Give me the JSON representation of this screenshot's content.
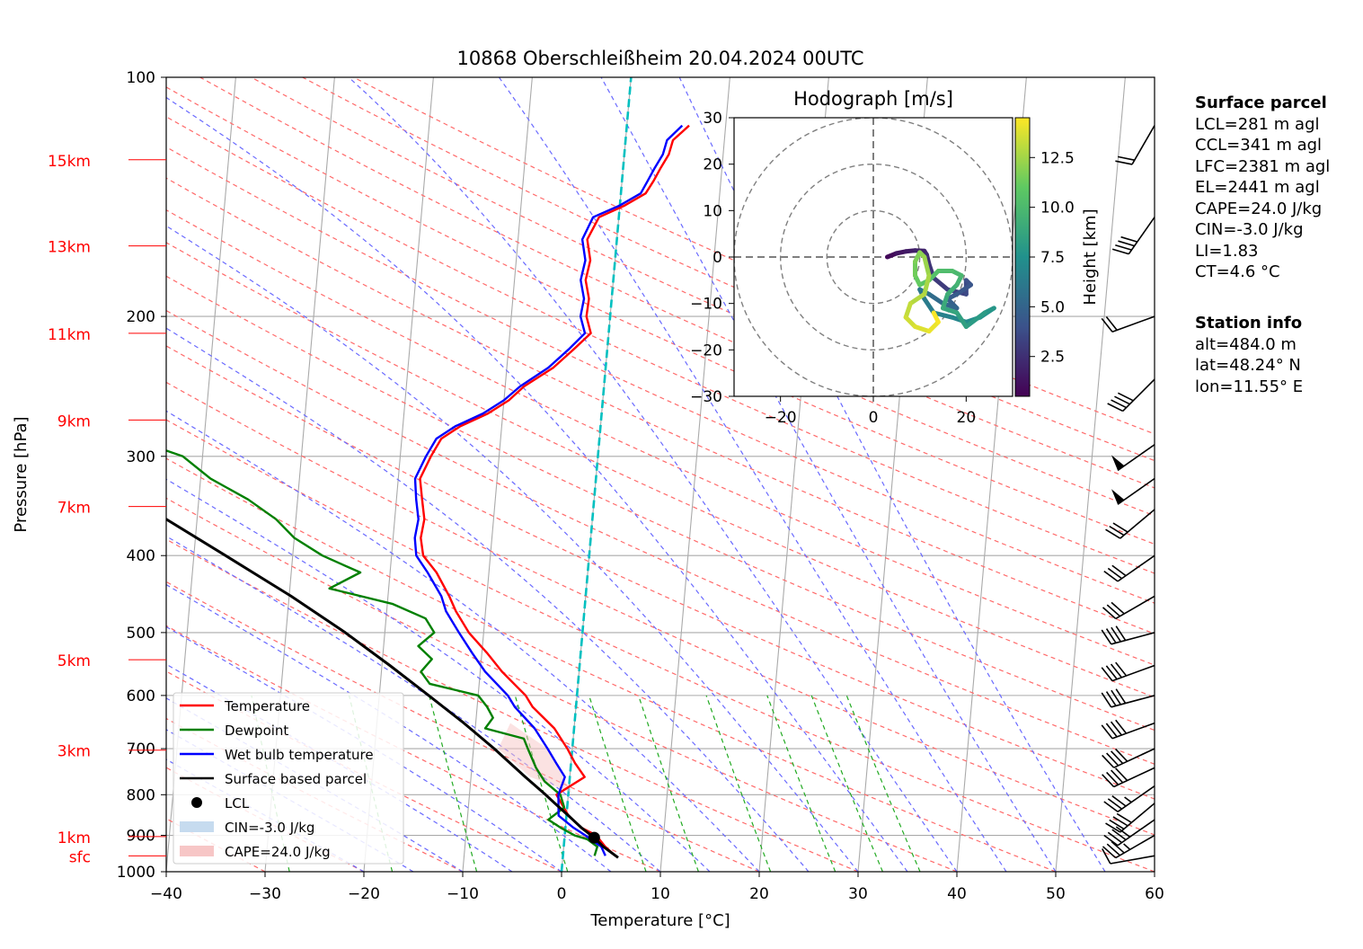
{
  "chart_data": {
    "type": "skew-t",
    "title": "10868 Oberschleißheim 20.04.2024 00UTC",
    "xlabel": "Temperature [°C]",
    "ylabel": "Pressure [hPa]",
    "xlim": [
      -40,
      60
    ],
    "ylim": [
      1000,
      100
    ],
    "x_ticks": [
      "−40",
      "−30",
      "−20",
      "−10",
      "0",
      "10",
      "20",
      "30",
      "40",
      "50",
      "60"
    ],
    "pressure_ticks": [
      {
        "p": 100,
        "label": "100"
      },
      {
        "p": 200,
        "label": "200"
      },
      {
        "p": 300,
        "label": "300"
      },
      {
        "p": 400,
        "label": "400"
      },
      {
        "p": 500,
        "label": "500"
      },
      {
        "p": 600,
        "label": "600"
      },
      {
        "p": 700,
        "label": "700"
      },
      {
        "p": 800,
        "label": "800"
      },
      {
        "p": 900,
        "label": "900"
      },
      {
        "p": 1000,
        "label": "1000"
      }
    ],
    "height_markers": [
      {
        "label": "15km",
        "p": 127
      },
      {
        "label": "13km",
        "p": 163
      },
      {
        "label": "11km",
        "p": 210
      },
      {
        "label": "9km",
        "p": 270
      },
      {
        "label": "7km",
        "p": 347
      },
      {
        "label": "5km",
        "p": 541
      },
      {
        "label": "3km",
        "p": 703
      },
      {
        "label": "1km",
        "p": 903
      },
      {
        "label": "sfc",
        "p": 955
      }
    ],
    "grid": true,
    "colors": {
      "temperature": "#ff0000",
      "dewpoint": "#008000",
      "wetbulb": "#0000ff",
      "parcel": "#000000",
      "dry_adiabat": "#ff6a6a",
      "moist_adiabat": "#6a6aff",
      "mixing_ratio": "#22aa22",
      "isotherm": "#aaaaaa",
      "zero_isotherm": "#00c0c0",
      "height_marker": "#ff0000"
    },
    "legend": {
      "position": "lower-left",
      "entries": [
        {
          "label": "Temperature",
          "kind": "line",
          "color": "#ff0000"
        },
        {
          "label": "Dewpoint",
          "kind": "line",
          "color": "#008000"
        },
        {
          "label": "Wet bulb temperature",
          "kind": "line",
          "color": "#0000ff"
        },
        {
          "label": "Surface based parcel",
          "kind": "line",
          "color": "#000000"
        },
        {
          "label": "LCL",
          "kind": "dot",
          "color": "#000000"
        },
        {
          "label": "CIN=-3.0 J/kg",
          "kind": "patch",
          "color": "#c6dbef"
        },
        {
          "label": "CAPE=24.0 J/kg",
          "kind": "patch",
          "color": "#f7c6c6"
        }
      ]
    },
    "series": [
      {
        "name": "Temperature",
        "points": [
          [
            955,
            5.3
          ],
          [
            930,
            4.2
          ],
          [
            900,
            3.2
          ],
          [
            880,
            1.6
          ],
          [
            850,
            0.2
          ],
          [
            800,
            -1.2
          ],
          [
            760,
            1.5
          ],
          [
            730,
            0.4
          ],
          [
            700,
            -0.5
          ],
          [
            660,
            -2.0
          ],
          [
            620,
            -4.4
          ],
          [
            600,
            -5.2
          ],
          [
            560,
            -7.8
          ],
          [
            530,
            -9.5
          ],
          [
            500,
            -11.5
          ],
          [
            470,
            -13.0
          ],
          [
            450,
            -13.8
          ],
          [
            420,
            -15.3
          ],
          [
            400,
            -16.8
          ],
          [
            380,
            -17.2
          ],
          [
            360,
            -17.0
          ],
          [
            340,
            -17.4
          ],
          [
            320,
            -17.8
          ],
          [
            300,
            -16.9
          ],
          [
            285,
            -16.0
          ],
          [
            275,
            -14.2
          ],
          [
            265,
            -11.5
          ],
          [
            255,
            -9.5
          ],
          [
            245,
            -8.1
          ],
          [
            232,
            -5.3
          ],
          [
            220,
            -3.4
          ],
          [
            210,
            -1.8
          ],
          [
            200,
            -2.4
          ],
          [
            190,
            -2.3
          ],
          [
            180,
            -2.8
          ],
          [
            170,
            -2.5
          ],
          [
            160,
            -3.0
          ],
          [
            150,
            -2.0
          ],
          [
            145,
            0.5
          ],
          [
            140,
            2.5
          ],
          [
            135,
            3.2
          ],
          [
            130,
            3.8
          ],
          [
            125,
            4.5
          ],
          [
            120,
            4.8
          ],
          [
            115,
            6.3
          ]
        ]
      },
      {
        "name": "Dewpoint",
        "points": [
          [
            955,
            3.2
          ],
          [
            930,
            3.4
          ],
          [
            910,
            2.3
          ],
          [
            900,
            1.0
          ],
          [
            880,
            -0.5
          ],
          [
            860,
            -1.8
          ],
          [
            830,
            -0.3
          ],
          [
            800,
            -0.8
          ],
          [
            770,
            -2.5
          ],
          [
            740,
            -3.5
          ],
          [
            700,
            -4.5
          ],
          [
            680,
            -5.0
          ],
          [
            660,
            -9.0
          ],
          [
            640,
            -8.3
          ],
          [
            620,
            -9.0
          ],
          [
            600,
            -10.0
          ],
          [
            580,
            -15.0
          ],
          [
            560,
            -16.0
          ],
          [
            540,
            -15.0
          ],
          [
            520,
            -16.5
          ],
          [
            500,
            -15.0
          ],
          [
            480,
            -16.0
          ],
          [
            460,
            -19.5
          ],
          [
            440,
            -26.0
          ],
          [
            420,
            -23.0
          ],
          [
            410,
            -25.0
          ],
          [
            400,
            -27.0
          ],
          [
            380,
            -30.0
          ],
          [
            360,
            -32.0
          ],
          [
            340,
            -35.0
          ],
          [
            320,
            -39.0
          ],
          [
            300,
            -42.0
          ],
          [
            290,
            -45.5
          ],
          [
            280,
            -47.0
          ],
          [
            270,
            -48.5
          ],
          [
            260,
            -49.0
          ],
          [
            250,
            -51.0
          ],
          [
            240,
            -52.5
          ],
          [
            230,
            -53.5
          ],
          [
            220,
            -55.0
          ],
          [
            200,
            -57.0
          ],
          [
            180,
            -59.0
          ],
          [
            160,
            -61.5
          ],
          [
            150,
            -62.5
          ],
          [
            140,
            -64.0
          ],
          [
            130,
            -66.5
          ],
          [
            123,
            -68.0
          ]
        ]
      },
      {
        "name": "Wet bulb temperature",
        "points": [
          [
            955,
            4.3
          ],
          [
            930,
            3.8
          ],
          [
            900,
            2.1
          ],
          [
            880,
            0.8
          ],
          [
            850,
            -0.8
          ],
          [
            800,
            -1.0
          ],
          [
            760,
            -0.5
          ],
          [
            730,
            -1.5
          ],
          [
            700,
            -2.5
          ],
          [
            660,
            -4.0
          ],
          [
            620,
            -6.2
          ],
          [
            600,
            -7.0
          ],
          [
            560,
            -9.5
          ],
          [
            530,
            -11.0
          ],
          [
            500,
            -12.5
          ],
          [
            470,
            -14.0
          ],
          [
            450,
            -14.6
          ],
          [
            420,
            -16.2
          ],
          [
            400,
            -17.5
          ],
          [
            380,
            -17.8
          ],
          [
            360,
            -17.6
          ],
          [
            340,
            -18.0
          ],
          [
            320,
            -18.3
          ],
          [
            300,
            -17.4
          ],
          [
            285,
            -16.5
          ],
          [
            275,
            -14.7
          ],
          [
            265,
            -12.0
          ],
          [
            255,
            -10.0
          ],
          [
            245,
            -8.5
          ],
          [
            232,
            -5.8
          ],
          [
            220,
            -3.9
          ],
          [
            210,
            -2.4
          ],
          [
            200,
            -3.0
          ],
          [
            190,
            -2.8
          ],
          [
            180,
            -3.3
          ],
          [
            170,
            -3.0
          ],
          [
            160,
            -3.5
          ],
          [
            150,
            -2.6
          ],
          [
            145,
            0.0
          ],
          [
            140,
            2.0
          ],
          [
            135,
            2.6
          ],
          [
            130,
            3.2
          ],
          [
            125,
            3.9
          ],
          [
            120,
            4.2
          ],
          [
            115,
            5.6
          ]
        ]
      },
      {
        "name": "Surface based parcel",
        "points": [
          [
            960,
            5.6
          ],
          [
            930,
            4.0
          ],
          [
            906,
            3.0
          ],
          [
            880,
            1.6
          ],
          [
            850,
            0.2
          ],
          [
            820,
            -1.3
          ],
          [
            800,
            -2.3
          ],
          [
            760,
            -4.5
          ],
          [
            700,
            -7.9
          ],
          [
            650,
            -11.2
          ],
          [
            600,
            -15.0
          ],
          [
            550,
            -19.2
          ],
          [
            500,
            -24.0
          ],
          [
            450,
            -29.8
          ],
          [
            400,
            -36.8
          ],
          [
            350,
            -44.8
          ],
          [
            300,
            -53.7
          ],
          [
            250,
            -64.0
          ],
          [
            200,
            -76.0
          ]
        ]
      }
    ],
    "lcl": {
      "p": 906,
      "t": 3.0
    },
    "zero_isotherm": {
      "t": 0
    },
    "wind_barbs": [
      {
        "p": 955,
        "speed_kt": 10,
        "dir_deg": 260
      },
      {
        "p": 900,
        "speed_kt": 35,
        "dir_deg": 240
      },
      {
        "p": 860,
        "speed_kt": 40,
        "dir_deg": 235
      },
      {
        "p": 820,
        "speed_kt": 40,
        "dir_deg": 230
      },
      {
        "p": 780,
        "speed_kt": 35,
        "dir_deg": 235
      },
      {
        "p": 740,
        "speed_kt": 40,
        "dir_deg": 245
      },
      {
        "p": 700,
        "speed_kt": 40,
        "dir_deg": 245
      },
      {
        "p": 650,
        "speed_kt": 40,
        "dir_deg": 250
      },
      {
        "p": 600,
        "speed_kt": 40,
        "dir_deg": 255
      },
      {
        "p": 550,
        "speed_kt": 40,
        "dir_deg": 250
      },
      {
        "p": 500,
        "speed_kt": 40,
        "dir_deg": 255
      },
      {
        "p": 450,
        "speed_kt": 30,
        "dir_deg": 240
      },
      {
        "p": 400,
        "speed_kt": 30,
        "dir_deg": 235
      },
      {
        "p": 350,
        "speed_kt": 30,
        "dir_deg": 230
      },
      {
        "p": 320,
        "speed_kt": 50,
        "dir_deg": 235
      },
      {
        "p": 290,
        "speed_kt": 50,
        "dir_deg": 235
      },
      {
        "p": 240,
        "speed_kt": 40,
        "dir_deg": 225
      },
      {
        "p": 200,
        "speed_kt": 20,
        "dir_deg": 250
      },
      {
        "p": 150,
        "speed_kt": 40,
        "dir_deg": 215
      },
      {
        "p": 115,
        "speed_kt": 20,
        "dir_deg": 210
      }
    ]
  },
  "hodograph": {
    "title": "Hodograph [m/s]",
    "xlim": [
      -30,
      30
    ],
    "ylim": [
      -30,
      30
    ],
    "x_ticks": [
      "−20",
      "0",
      "20"
    ],
    "y_ticks": [
      "30",
      "20",
      "10",
      "0",
      "−10",
      "−20",
      "−30"
    ],
    "rings_ms": [
      10,
      20,
      30
    ],
    "colorbar_label": "Height [km]",
    "colorbar_ticks": [
      "2.5",
      "5.0",
      "7.5",
      "10.0",
      "12.5"
    ],
    "height_range_km": [
      0.5,
      14.5
    ],
    "trace": [
      [
        3,
        0,
        0.5
      ],
      [
        5,
        0.8,
        0.9
      ],
      [
        7,
        1.2,
        1.3
      ],
      [
        9,
        1.4,
        1.6
      ],
      [
        11,
        1.3,
        1.9
      ],
      [
        11.5,
        0.5,
        2.1
      ],
      [
        12,
        -1.5,
        2.4
      ],
      [
        13,
        -4.5,
        2.7
      ],
      [
        16,
        -7,
        3.0
      ],
      [
        20,
        -8,
        3.3
      ],
      [
        20,
        -5,
        3.6
      ],
      [
        21,
        -6,
        3.9
      ],
      [
        18,
        -8,
        4.2
      ],
      [
        16,
        -9,
        4.5
      ],
      [
        18,
        -11,
        4.8
      ],
      [
        15,
        -10,
        5.1
      ],
      [
        12,
        -8,
        5.4
      ],
      [
        10,
        -7,
        5.7
      ],
      [
        11,
        -9,
        6.0
      ],
      [
        13,
        -12,
        6.3
      ],
      [
        17,
        -13,
        6.6
      ],
      [
        20,
        -14,
        6.9
      ],
      [
        23,
        -13,
        7.2
      ],
      [
        26,
        -11,
        7.5
      ],
      [
        24,
        -12,
        7.8
      ],
      [
        20,
        -15,
        8.1
      ],
      [
        18,
        -12,
        8.4
      ],
      [
        15,
        -11,
        8.7
      ],
      [
        16,
        -8,
        9.0
      ],
      [
        18,
        -6,
        9.3
      ],
      [
        19,
        -4,
        9.6
      ],
      [
        17,
        -3,
        9.9
      ],
      [
        14,
        -3,
        10.2
      ],
      [
        12,
        -5,
        10.5
      ],
      [
        10,
        -6,
        10.8
      ],
      [
        9,
        -4,
        11.1
      ],
      [
        9,
        -1,
        11.4
      ],
      [
        10,
        1,
        11.7
      ],
      [
        11,
        0,
        12.0
      ],
      [
        12,
        -4,
        12.3
      ],
      [
        11,
        -8,
        12.6
      ],
      [
        8,
        -10,
        12.9
      ],
      [
        7,
        -13,
        13.2
      ],
      [
        9,
        -15,
        13.5
      ],
      [
        12,
        -16,
        13.8
      ],
      [
        14,
        -14,
        14.1
      ],
      [
        13,
        -12,
        14.4
      ]
    ]
  },
  "info": {
    "surface_parcel": {
      "title": "Surface parcel",
      "lines": [
        "LCL=281 m agl",
        "CCL=341 m agl",
        "LFC=2381 m agl",
        "EL=2441 m agl",
        "CAPE=24.0 J/kg",
        "CIN=-3.0 J/kg",
        "LI=1.83",
        "CT=4.6 °C"
      ]
    },
    "station": {
      "title": "Station info",
      "lines": [
        "alt=484.0 m",
        "lat=48.24° N",
        "lon=11.55° E"
      ]
    }
  }
}
